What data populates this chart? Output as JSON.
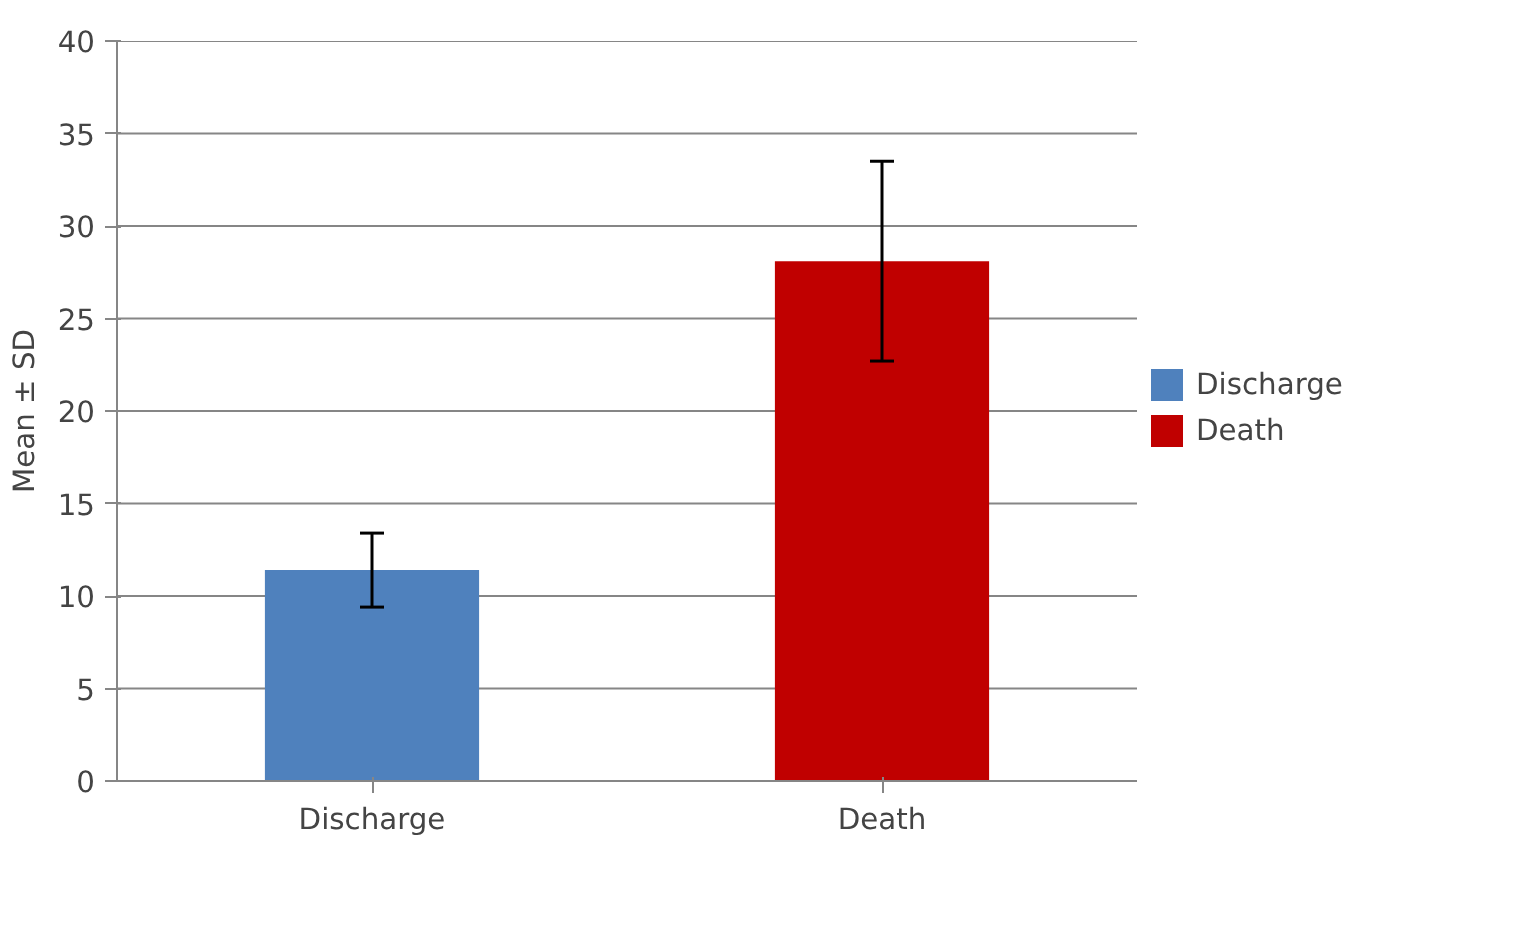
{
  "chart_data": {
    "type": "bar",
    "ylabel": "Mean ± SD",
    "categories": [
      "Discharge",
      "Death"
    ],
    "series": [
      {
        "name": "Discharge",
        "color": "#4f81bd",
        "values": [
          11.4,
          null
        ],
        "errors": [
          2.0,
          null
        ]
      },
      {
        "name": "Death",
        "color": "#c00000",
        "values": [
          null,
          28.1
        ],
        "errors": [
          null,
          5.4
        ]
      }
    ],
    "ylim": [
      0,
      40
    ],
    "yticks": [
      0,
      5,
      10,
      15,
      20,
      25,
      30,
      35,
      40
    ],
    "grid": "y",
    "legend": "right"
  }
}
